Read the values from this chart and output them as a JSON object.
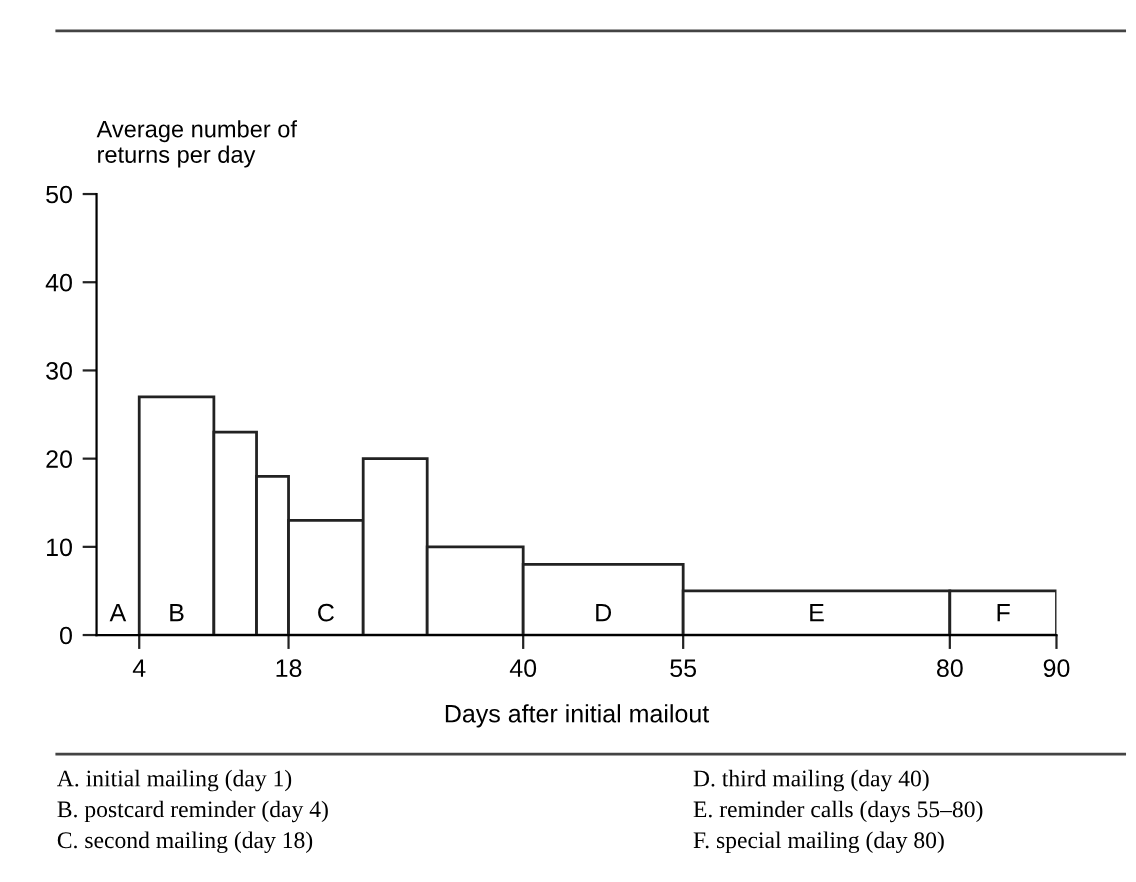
{
  "chart_data": {
    "type": "histogram",
    "ylabel": "Average number of\nreturns per day",
    "xlabel": "Days after initial mailout",
    "bins": [
      4,
      11,
      15,
      18,
      25,
      31,
      40,
      55,
      80,
      90
    ],
    "values": [
      27,
      23,
      18,
      13,
      20,
      10,
      8,
      5,
      5
    ],
    "color": "#ffffff",
    "xlim": [
      0,
      90
    ],
    "xticks": [
      4,
      18,
      40,
      55,
      80,
      90
    ],
    "ylim": [
      0,
      50
    ],
    "yticks": [
      0,
      10,
      20,
      30,
      40,
      50
    ],
    "grid": false,
    "legend": false,
    "annotations": [
      "A",
      "B",
      "C",
      "D",
      "E",
      "F",
      "A. initial mailing (day 1)",
      "B. postcard reminder (day 4)",
      "C. second mailing (day 18)",
      "D. third mailing (day 40)",
      "E. reminder calls (days 55–80)",
      "F. special mailing (day 80)"
    ]
  }
}
